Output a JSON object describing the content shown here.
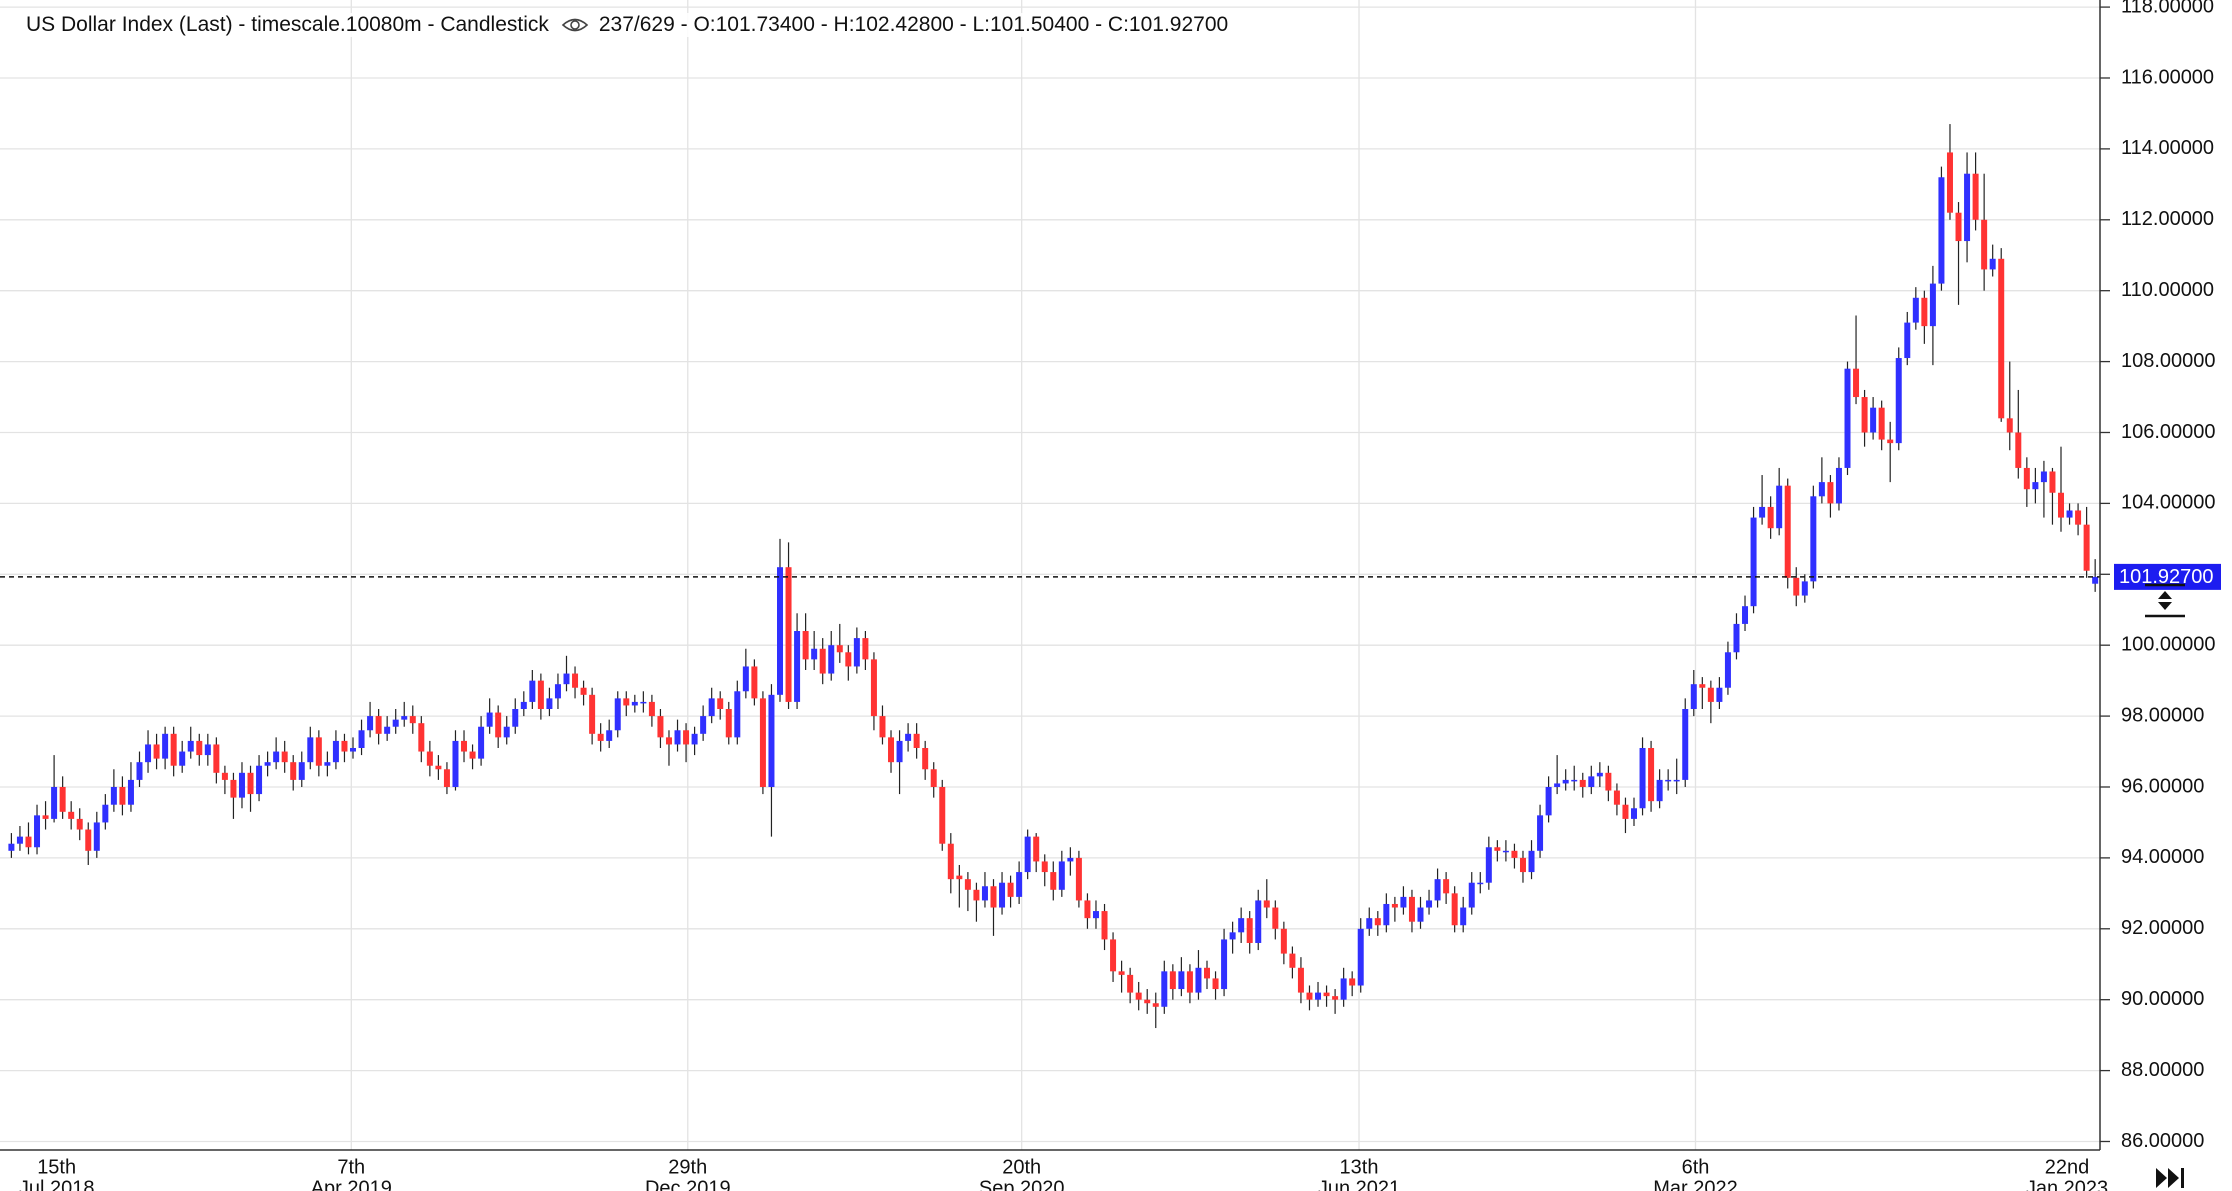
{
  "chart_data": {
    "type": "candlestick",
    "title": "US Dollar Index (Last) - timescale.10080m - Candlestick",
    "info": "237/629 - O:101.73400 - H:102.42800 - L:101.50400 - C:101.92700",
    "up_color": "#3030ff",
    "down_color": "#ff3333",
    "grid": true,
    "ylim": [
      85.76,
      118.2
    ],
    "yticks": [
      {
        "value": 86,
        "label": "86.00000"
      },
      {
        "value": 88,
        "label": "88.00000"
      },
      {
        "value": 90,
        "label": "90.00000"
      },
      {
        "value": 92,
        "label": "92.00000"
      },
      {
        "value": 94,
        "label": "94.00000"
      },
      {
        "value": 96,
        "label": "96.00000"
      },
      {
        "value": 98,
        "label": "98.00000"
      },
      {
        "value": 100,
        "label": "100.00000"
      },
      {
        "value": 102,
        "label": "102.00000"
      },
      {
        "value": 104,
        "label": "104.00000"
      },
      {
        "value": 106,
        "label": "106.00000"
      },
      {
        "value": 108,
        "label": "108.00000"
      },
      {
        "value": 110,
        "label": "110.00000"
      },
      {
        "value": 112,
        "label": "112.00000"
      },
      {
        "value": 114,
        "label": "114.00000"
      },
      {
        "value": 116,
        "label": "116.00000"
      },
      {
        "value": 118,
        "label": "118.00000"
      }
    ],
    "xticks": [
      {
        "day": "15th",
        "month": "Jul 2018"
      },
      {
        "day": "7th",
        "month": "Apr 2019"
      },
      {
        "day": "29th",
        "month": "Dec 2019"
      },
      {
        "day": "20th",
        "month": "Sep 2020"
      },
      {
        "day": "13th",
        "month": "Jun 2021"
      },
      {
        "day": "6th",
        "month": "Mar 2022"
      },
      {
        "day": "22nd",
        "month": "Jan 2023"
      }
    ],
    "last_price": {
      "value": 101.927,
      "label": "101.92700"
    },
    "candles": [
      [
        94.2,
        94.7,
        94.0,
        94.4
      ],
      [
        94.4,
        94.9,
        94.2,
        94.6
      ],
      [
        94.6,
        95.0,
        94.1,
        94.3
      ],
      [
        94.3,
        95.5,
        94.1,
        95.2
      ],
      [
        95.2,
        95.6,
        94.8,
        95.1
      ],
      [
        95.1,
        96.9,
        95.0,
        96.0
      ],
      [
        96.0,
        96.3,
        95.1,
        95.3
      ],
      [
        95.3,
        95.6,
        94.8,
        95.1
      ],
      [
        95.1,
        95.4,
        94.5,
        94.8
      ],
      [
        94.8,
        95.0,
        93.8,
        94.2
      ],
      [
        94.2,
        95.3,
        94.0,
        95.0
      ],
      [
        95.0,
        95.8,
        94.8,
        95.5
      ],
      [
        95.5,
        96.5,
        95.3,
        96.0
      ],
      [
        96.0,
        96.3,
        95.2,
        95.5
      ],
      [
        95.5,
        96.7,
        95.3,
        96.2
      ],
      [
        96.2,
        97.0,
        96.0,
        96.7
      ],
      [
        96.7,
        97.6,
        96.4,
        97.2
      ],
      [
        97.2,
        97.5,
        96.5,
        96.8
      ],
      [
        96.8,
        97.7,
        96.5,
        97.5
      ],
      [
        97.5,
        97.7,
        96.3,
        96.6
      ],
      [
        96.6,
        97.3,
        96.4,
        97.0
      ],
      [
        97.0,
        97.7,
        96.8,
        97.3
      ],
      [
        97.3,
        97.5,
        96.6,
        96.9
      ],
      [
        96.9,
        97.5,
        96.6,
        97.2
      ],
      [
        97.2,
        97.4,
        96.1,
        96.4
      ],
      [
        96.4,
        96.6,
        95.8,
        96.2
      ],
      [
        96.2,
        96.4,
        95.1,
        95.7
      ],
      [
        95.7,
        96.7,
        95.4,
        96.4
      ],
      [
        96.4,
        96.6,
        95.3,
        95.8
      ],
      [
        95.8,
        96.9,
        95.6,
        96.6
      ],
      [
        96.6,
        97.0,
        96.3,
        96.7
      ],
      [
        96.7,
        97.4,
        96.5,
        97.0
      ],
      [
        97.0,
        97.3,
        96.4,
        96.7
      ],
      [
        96.7,
        96.9,
        95.9,
        96.2
      ],
      [
        96.2,
        97.0,
        96.0,
        96.7
      ],
      [
        96.7,
        97.7,
        96.5,
        97.4
      ],
      [
        97.4,
        97.6,
        96.3,
        96.6
      ],
      [
        96.6,
        97.0,
        96.3,
        96.7
      ],
      [
        96.7,
        97.6,
        96.5,
        97.3
      ],
      [
        97.3,
        97.5,
        96.7,
        97.0
      ],
      [
        97.0,
        97.4,
        96.8,
        97.1
      ],
      [
        97.1,
        97.9,
        96.9,
        97.6
      ],
      [
        97.6,
        98.4,
        97.4,
        98.0
      ],
      [
        98.0,
        98.2,
        97.2,
        97.5
      ],
      [
        97.5,
        98.0,
        97.3,
        97.7
      ],
      [
        97.7,
        98.2,
        97.5,
        97.9
      ],
      [
        97.9,
        98.4,
        97.7,
        98.0
      ],
      [
        98.0,
        98.3,
        97.5,
        97.8
      ],
      [
        97.8,
        98.0,
        96.7,
        97.0
      ],
      [
        97.0,
        97.3,
        96.3,
        96.6
      ],
      [
        96.6,
        96.9,
        96.2,
        96.5
      ],
      [
        96.5,
        96.7,
        95.8,
        96.0
      ],
      [
        96.0,
        97.6,
        95.9,
        97.3
      ],
      [
        97.3,
        97.6,
        96.7,
        97.0
      ],
      [
        97.0,
        97.2,
        96.5,
        96.8
      ],
      [
        96.8,
        98.0,
        96.6,
        97.7
      ],
      [
        97.7,
        98.5,
        97.5,
        98.1
      ],
      [
        98.1,
        98.3,
        97.1,
        97.4
      ],
      [
        97.4,
        98.0,
        97.2,
        97.7
      ],
      [
        97.7,
        98.5,
        97.5,
        98.2
      ],
      [
        98.2,
        98.7,
        98.0,
        98.4
      ],
      [
        98.4,
        99.3,
        98.2,
        99.0
      ],
      [
        99.0,
        99.2,
        97.9,
        98.2
      ],
      [
        98.2,
        98.8,
        98.0,
        98.5
      ],
      [
        98.5,
        99.2,
        98.2,
        98.9
      ],
      [
        98.9,
        99.7,
        98.7,
        99.2
      ],
      [
        99.2,
        99.4,
        98.5,
        98.8
      ],
      [
        98.8,
        99.0,
        98.3,
        98.6
      ],
      [
        98.6,
        98.8,
        97.2,
        97.5
      ],
      [
        97.5,
        97.8,
        97.0,
        97.3
      ],
      [
        97.3,
        97.9,
        97.1,
        97.6
      ],
      [
        97.6,
        98.7,
        97.4,
        98.5
      ],
      [
        98.5,
        98.7,
        98.0,
        98.3
      ],
      [
        98.3,
        98.6,
        98.1,
        98.4
      ],
      [
        98.4,
        98.7,
        98.1,
        98.4
      ],
      [
        98.4,
        98.6,
        97.7,
        98.0
      ],
      [
        98.0,
        98.2,
        97.1,
        97.4
      ],
      [
        97.4,
        97.6,
        96.6,
        97.2
      ],
      [
        97.2,
        97.9,
        97.0,
        97.6
      ],
      [
        97.6,
        97.8,
        96.7,
        97.2
      ],
      [
        97.2,
        97.7,
        96.9,
        97.5
      ],
      [
        97.5,
        98.3,
        97.3,
        98.0
      ],
      [
        98.0,
        98.8,
        97.8,
        98.5
      ],
      [
        98.5,
        98.7,
        97.9,
        98.2
      ],
      [
        98.2,
        98.4,
        97.2,
        97.4
      ],
      [
        97.4,
        99.0,
        97.2,
        98.7
      ],
      [
        98.7,
        99.9,
        98.5,
        99.4
      ],
      [
        99.4,
        99.6,
        98.3,
        98.5
      ],
      [
        98.5,
        98.7,
        95.8,
        96.0
      ],
      [
        96.0,
        98.9,
        94.6,
        98.6
      ],
      [
        98.6,
        103.0,
        98.4,
        102.2
      ],
      [
        102.2,
        102.9,
        98.2,
        98.4
      ],
      [
        98.4,
        100.9,
        98.2,
        100.4
      ],
      [
        100.4,
        100.9,
        99.3,
        99.6
      ],
      [
        99.6,
        100.4,
        99.3,
        99.9
      ],
      [
        99.9,
        100.2,
        98.9,
        99.2
      ],
      [
        99.2,
        100.4,
        99.0,
        100.0
      ],
      [
        100.0,
        100.6,
        99.5,
        99.8
      ],
      [
        99.8,
        100.0,
        99.0,
        99.4
      ],
      [
        99.4,
        100.5,
        99.2,
        100.2
      ],
      [
        100.2,
        100.4,
        99.3,
        99.6
      ],
      [
        99.6,
        99.8,
        97.6,
        98.0
      ],
      [
        98.0,
        98.3,
        97.2,
        97.4
      ],
      [
        97.4,
        97.6,
        96.4,
        96.7
      ],
      [
        96.7,
        97.6,
        95.8,
        97.3
      ],
      [
        97.3,
        97.8,
        97.0,
        97.5
      ],
      [
        97.5,
        97.8,
        96.8,
        97.1
      ],
      [
        97.1,
        97.3,
        96.2,
        96.5
      ],
      [
        96.5,
        96.7,
        95.7,
        96.0
      ],
      [
        96.0,
        96.2,
        94.2,
        94.4
      ],
      [
        94.4,
        94.7,
        93.0,
        93.4
      ],
      [
        93.5,
        93.8,
        92.6,
        93.4
      ],
      [
        93.4,
        93.6,
        92.5,
        93.1
      ],
      [
        93.1,
        93.3,
        92.2,
        92.8
      ],
      [
        92.8,
        93.6,
        92.6,
        93.2
      ],
      [
        93.2,
        93.4,
        91.8,
        92.6
      ],
      [
        92.6,
        93.6,
        92.4,
        93.3
      ],
      [
        93.3,
        93.5,
        92.6,
        92.9
      ],
      [
        92.9,
        93.9,
        92.7,
        93.6
      ],
      [
        93.6,
        94.8,
        93.4,
        94.6
      ],
      [
        94.6,
        94.7,
        93.6,
        93.9
      ],
      [
        93.9,
        94.1,
        93.2,
        93.6
      ],
      [
        93.6,
        93.9,
        92.8,
        93.1
      ],
      [
        93.1,
        94.2,
        92.9,
        93.9
      ],
      [
        93.9,
        94.3,
        93.5,
        94.0
      ],
      [
        94.0,
        94.2,
        92.6,
        92.8
      ],
      [
        92.8,
        93.0,
        92.0,
        92.3
      ],
      [
        92.3,
        92.8,
        92.0,
        92.5
      ],
      [
        92.5,
        92.7,
        91.4,
        91.7
      ],
      [
        91.7,
        91.9,
        90.5,
        90.8
      ],
      [
        90.8,
        91.1,
        90.2,
        90.7
      ],
      [
        90.7,
        90.9,
        89.9,
        90.2
      ],
      [
        90.2,
        90.5,
        89.7,
        90.0
      ],
      [
        90.0,
        90.3,
        89.6,
        89.9
      ],
      [
        89.9,
        90.2,
        89.2,
        89.8
      ],
      [
        89.8,
        91.1,
        89.6,
        90.8
      ],
      [
        90.8,
        91.0,
        90.0,
        90.3
      ],
      [
        90.3,
        91.2,
        90.1,
        90.8
      ],
      [
        90.8,
        91.0,
        89.9,
        90.2
      ],
      [
        90.2,
        91.4,
        90.0,
        90.9
      ],
      [
        90.9,
        91.1,
        90.3,
        90.6
      ],
      [
        90.6,
        90.8,
        90.0,
        90.3
      ],
      [
        90.3,
        92.0,
        90.1,
        91.7
      ],
      [
        91.7,
        92.2,
        91.3,
        91.9
      ],
      [
        91.9,
        92.6,
        91.6,
        92.3
      ],
      [
        92.3,
        92.5,
        91.3,
        91.6
      ],
      [
        91.6,
        93.1,
        91.4,
        92.8
      ],
      [
        92.8,
        93.4,
        92.3,
        92.6
      ],
      [
        92.6,
        92.8,
        91.7,
        92.0
      ],
      [
        92.0,
        92.2,
        91.0,
        91.3
      ],
      [
        91.3,
        91.5,
        90.6,
        90.9
      ],
      [
        90.9,
        91.2,
        89.9,
        90.2
      ],
      [
        90.2,
        90.4,
        89.7,
        90.0
      ],
      [
        90.0,
        90.5,
        89.8,
        90.2
      ],
      [
        90.2,
        90.4,
        89.8,
        90.1
      ],
      [
        90.1,
        90.3,
        89.6,
        90.0
      ],
      [
        90.0,
        90.9,
        89.8,
        90.6
      ],
      [
        90.6,
        90.8,
        90.1,
        90.4
      ],
      [
        90.4,
        92.3,
        90.2,
        92.0
      ],
      [
        92.0,
        92.6,
        91.8,
        92.3
      ],
      [
        92.3,
        92.5,
        91.8,
        92.1
      ],
      [
        92.1,
        93.0,
        91.9,
        92.7
      ],
      [
        92.7,
        92.9,
        92.2,
        92.6
      ],
      [
        92.6,
        93.2,
        92.4,
        92.9
      ],
      [
        92.9,
        93.1,
        91.9,
        92.2
      ],
      [
        92.2,
        92.9,
        92.0,
        92.6
      ],
      [
        92.6,
        93.1,
        92.4,
        92.8
      ],
      [
        92.8,
        93.7,
        92.6,
        93.4
      ],
      [
        93.4,
        93.6,
        92.7,
        93.0
      ],
      [
        93.0,
        93.2,
        91.9,
        92.1
      ],
      [
        92.1,
        92.9,
        91.9,
        92.6
      ],
      [
        92.6,
        93.6,
        92.4,
        93.3
      ],
      [
        93.3,
        93.6,
        93.0,
        93.3
      ],
      [
        93.3,
        94.6,
        93.1,
        94.3
      ],
      [
        94.3,
        94.5,
        93.9,
        94.2
      ],
      [
        94.2,
        94.5,
        93.9,
        94.2
      ],
      [
        94.2,
        94.4,
        93.7,
        94.0
      ],
      [
        94.0,
        94.2,
        93.3,
        93.6
      ],
      [
        93.6,
        94.5,
        93.4,
        94.2
      ],
      [
        94.2,
        95.5,
        94.0,
        95.2
      ],
      [
        95.2,
        96.3,
        95.0,
        96.0
      ],
      [
        96.0,
        96.9,
        95.8,
        96.1
      ],
      [
        96.1,
        96.5,
        95.9,
        96.2
      ],
      [
        96.2,
        96.6,
        95.9,
        96.2
      ],
      [
        96.2,
        96.4,
        95.7,
        96.0
      ],
      [
        96.0,
        96.6,
        95.8,
        96.3
      ],
      [
        96.3,
        96.7,
        96.0,
        96.4
      ],
      [
        96.4,
        96.6,
        95.6,
        95.9
      ],
      [
        95.9,
        96.1,
        95.2,
        95.5
      ],
      [
        95.5,
        95.7,
        94.7,
        95.1
      ],
      [
        95.1,
        95.7,
        94.9,
        95.4
      ],
      [
        95.4,
        97.4,
        95.2,
        97.1
      ],
      [
        97.1,
        97.3,
        95.3,
        95.6
      ],
      [
        95.6,
        96.5,
        95.4,
        96.2
      ],
      [
        96.2,
        96.5,
        95.9,
        96.2
      ],
      [
        96.2,
        96.8,
        95.8,
        96.2
      ],
      [
        96.2,
        98.5,
        96.0,
        98.2
      ],
      [
        98.2,
        99.3,
        98.0,
        98.9
      ],
      [
        98.9,
        99.1,
        98.2,
        98.8
      ],
      [
        98.8,
        99.0,
        97.8,
        98.4
      ],
      [
        98.4,
        99.1,
        98.2,
        98.8
      ],
      [
        98.8,
        100.1,
        98.6,
        99.8
      ],
      [
        99.8,
        100.9,
        99.6,
        100.6
      ],
      [
        100.6,
        101.4,
        100.4,
        101.1
      ],
      [
        101.1,
        103.9,
        100.9,
        103.6
      ],
      [
        103.6,
        104.8,
        103.4,
        103.9
      ],
      [
        103.9,
        104.2,
        103.0,
        103.3
      ],
      [
        103.3,
        105.0,
        103.1,
        104.5
      ],
      [
        104.5,
        104.7,
        101.6,
        101.9
      ],
      [
        101.9,
        102.2,
        101.1,
        101.4
      ],
      [
        101.4,
        102.0,
        101.2,
        101.8
      ],
      [
        101.8,
        104.5,
        101.6,
        104.2
      ],
      [
        104.2,
        105.3,
        104.0,
        104.6
      ],
      [
        104.6,
        104.8,
        103.6,
        104.0
      ],
      [
        104.0,
        105.3,
        103.8,
        105.0
      ],
      [
        105.0,
        108.0,
        104.8,
        107.8
      ],
      [
        107.8,
        109.3,
        106.8,
        107.0
      ],
      [
        107.0,
        107.2,
        105.6,
        106.0
      ],
      [
        106.0,
        107.0,
        105.8,
        106.7
      ],
      [
        106.7,
        106.9,
        105.5,
        105.8
      ],
      [
        105.8,
        106.3,
        104.6,
        105.7
      ],
      [
        105.7,
        108.4,
        105.5,
        108.1
      ],
      [
        108.1,
        109.4,
        107.9,
        109.1
      ],
      [
        109.1,
        110.1,
        108.9,
        109.8
      ],
      [
        109.8,
        110.0,
        108.5,
        109.0
      ],
      [
        109.0,
        110.7,
        107.9,
        110.2
      ],
      [
        110.2,
        113.5,
        110.0,
        113.2
      ],
      [
        113.9,
        114.7,
        112.0,
        112.2
      ],
      [
        112.2,
        112.5,
        109.6,
        111.4
      ],
      [
        111.4,
        113.9,
        110.8,
        113.3
      ],
      [
        113.3,
        113.9,
        111.7,
        112.0
      ],
      [
        112.0,
        113.3,
        110.0,
        110.6
      ],
      [
        110.6,
        111.3,
        110.4,
        110.9
      ],
      [
        110.9,
        111.2,
        106.3,
        106.4
      ],
      [
        106.4,
        108.0,
        105.5,
        106.0
      ],
      [
        106.0,
        107.2,
        104.7,
        105.0
      ],
      [
        105.0,
        105.3,
        103.9,
        104.4
      ],
      [
        104.4,
        105.0,
        104.0,
        104.6
      ],
      [
        104.6,
        105.2,
        103.6,
        104.9
      ],
      [
        104.9,
        105.0,
        103.4,
        104.3
      ],
      [
        104.3,
        105.6,
        103.2,
        103.6
      ],
      [
        103.6,
        104.0,
        103.4,
        103.8
      ],
      [
        103.8,
        104.0,
        103.1,
        103.4
      ],
      [
        103.4,
        103.9,
        101.9,
        102.1
      ],
      [
        101.734,
        102.428,
        101.504,
        101.927
      ]
    ]
  }
}
